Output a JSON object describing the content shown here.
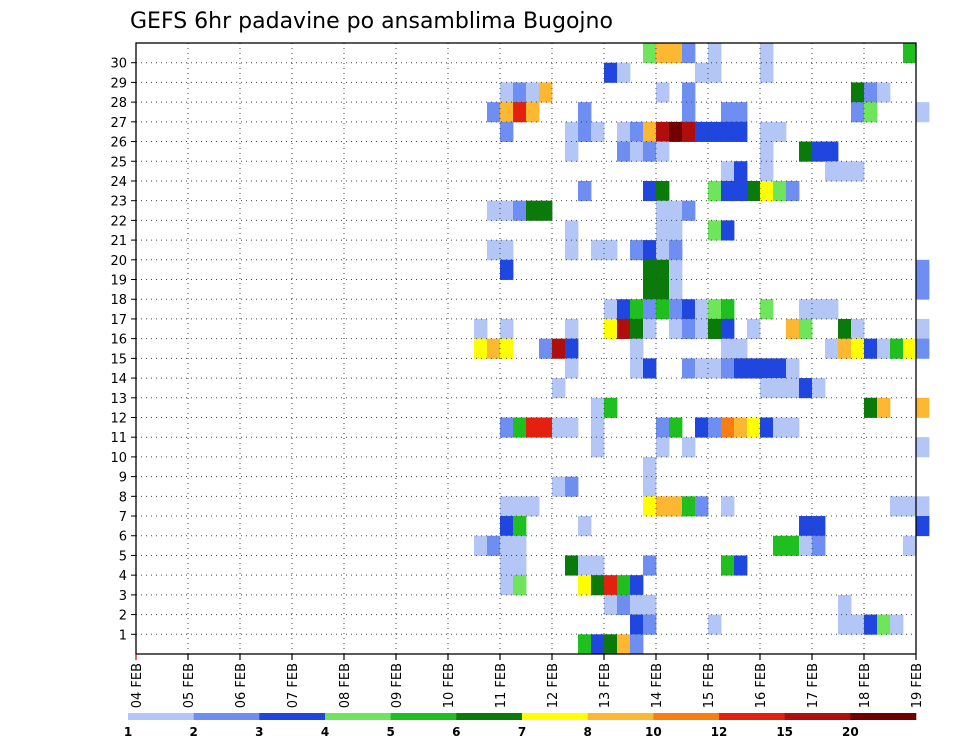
{
  "chart_data": {
    "type": "heatmap",
    "title": "GEFS 6hr padavine po ansamblima Bugojno",
    "xlabel": "",
    "ylabel": "",
    "x_ticks": [
      "04 FEB",
      "05 FEB",
      "06 FEB",
      "07 FEB",
      "08 FEB",
      "09 FEB",
      "10 FEB",
      "11 FEB",
      "12 FEB",
      "13 FEB",
      "14 FEB",
      "15 FEB",
      "16 FEB",
      "17 FEB",
      "18 FEB",
      "19 FEB"
    ],
    "y_ticks": [
      "1",
      "2",
      "3",
      "4",
      "5",
      "6",
      "7",
      "8",
      "9",
      "10",
      "11",
      "12",
      "13",
      "14",
      "15",
      "16",
      "17",
      "18",
      "19",
      "20",
      "21",
      "22",
      "23",
      "24",
      "25",
      "26",
      "27",
      "28",
      "29",
      "30"
    ],
    "x_axis": "6-hourly steps starting 04 FEB 00z (4 steps per day)",
    "y_axis": "ensemble member",
    "grid": true,
    "legend": {
      "placement": "bottom",
      "colors": [
        "#b3c6f5",
        "#6e8ef2",
        "#1f47e0",
        "#6ee55a",
        "#1fbf1f",
        "#0a7a0a",
        "#ffff00",
        "#fdb832",
        "#fb7d0f",
        "#e4200e",
        "#b00d0d",
        "#700000"
      ],
      "labels": [
        "1",
        "2",
        "3",
        "4",
        "5",
        "6",
        "7",
        "8",
        "10",
        "12",
        "15",
        "20"
      ]
    },
    "cells": [
      [
        30,
        39,
        4
      ],
      [
        30,
        40,
        8
      ],
      [
        30,
        41,
        8
      ],
      [
        30,
        42,
        2
      ],
      [
        30,
        44,
        1
      ],
      [
        30,
        48,
        1
      ],
      [
        30,
        59,
        5
      ],
      [
        29,
        36,
        3
      ],
      [
        29,
        37,
        1
      ],
      [
        29,
        43,
        1
      ],
      [
        29,
        44,
        1
      ],
      [
        29,
        48,
        1
      ],
      [
        28,
        28,
        1
      ],
      [
        28,
        29,
        2
      ],
      [
        28,
        30,
        1
      ],
      [
        28,
        31,
        9
      ],
      [
        28,
        40,
        1
      ],
      [
        28,
        42,
        2
      ],
      [
        28,
        55,
        6
      ],
      [
        28,
        56,
        2
      ],
      [
        28,
        57,
        1
      ],
      [
        27,
        27,
        2
      ],
      [
        27,
        28,
        8
      ],
      [
        27,
        29,
        12
      ],
      [
        27,
        30,
        8
      ],
      [
        27,
        34,
        2
      ],
      [
        27,
        42,
        2
      ],
      [
        27,
        45,
        2
      ],
      [
        27,
        46,
        2
      ],
      [
        27,
        55,
        2
      ],
      [
        27,
        56,
        4
      ],
      [
        27,
        60,
        1
      ],
      [
        26,
        28,
        2
      ],
      [
        26,
        33,
        1
      ],
      [
        26,
        34,
        2
      ],
      [
        26,
        35,
        1
      ],
      [
        26,
        37,
        1
      ],
      [
        26,
        38,
        2
      ],
      [
        26,
        39,
        8
      ],
      [
        26,
        40,
        15
      ],
      [
        26,
        41,
        20
      ],
      [
        26,
        42,
        15
      ],
      [
        26,
        43,
        3
      ],
      [
        26,
        44,
        3
      ],
      [
        26,
        45,
        3
      ],
      [
        26,
        46,
        3
      ],
      [
        26,
        48,
        1
      ],
      [
        26,
        49,
        1
      ],
      [
        25,
        33,
        1
      ],
      [
        25,
        37,
        2
      ],
      [
        25,
        38,
        1
      ],
      [
        25,
        39,
        2
      ],
      [
        25,
        40,
        1
      ],
      [
        25,
        48,
        1
      ],
      [
        25,
        51,
        6
      ],
      [
        25,
        52,
        3
      ],
      [
        25,
        53,
        3
      ],
      [
        24,
        45,
        1
      ],
      [
        24,
        46,
        3
      ],
      [
        24,
        48,
        1
      ],
      [
        24,
        53,
        1
      ],
      [
        24,
        54,
        1
      ],
      [
        24,
        55,
        1
      ],
      [
        23,
        34,
        2
      ],
      [
        23,
        39,
        3
      ],
      [
        23,
        40,
        6
      ],
      [
        23,
        44,
        4
      ],
      [
        23,
        45,
        3
      ],
      [
        23,
        46,
        3
      ],
      [
        23,
        47,
        6
      ],
      [
        23,
        48,
        7
      ],
      [
        23,
        49,
        4
      ],
      [
        23,
        50,
        2
      ],
      [
        22,
        27,
        1
      ],
      [
        22,
        28,
        1
      ],
      [
        22,
        29,
        2
      ],
      [
        22,
        30,
        6
      ],
      [
        22,
        31,
        6
      ],
      [
        22,
        40,
        1
      ],
      [
        22,
        41,
        1
      ],
      [
        22,
        42,
        2
      ],
      [
        21,
        33,
        1
      ],
      [
        21,
        40,
        1
      ],
      [
        21,
        41,
        1
      ],
      [
        21,
        44,
        4
      ],
      [
        21,
        45,
        3
      ],
      [
        20,
        27,
        1
      ],
      [
        20,
        28,
        1
      ],
      [
        20,
        33,
        1
      ],
      [
        20,
        35,
        1
      ],
      [
        20,
        36,
        1
      ],
      [
        20,
        38,
        2
      ],
      [
        20,
        39,
        3
      ],
      [
        20,
        40,
        1
      ],
      [
        20,
        41,
        2
      ],
      [
        19,
        28,
        3
      ],
      [
        19,
        39,
        6
      ],
      [
        19,
        40,
        6
      ],
      [
        19,
        41,
        1
      ],
      [
        19,
        60,
        2
      ],
      [
        18,
        39,
        6
      ],
      [
        18,
        40,
        6
      ],
      [
        18,
        41,
        1
      ],
      [
        18,
        60,
        2
      ],
      [
        17,
        36,
        1
      ],
      [
        17,
        37,
        3
      ],
      [
        17,
        38,
        5
      ],
      [
        17,
        39,
        2
      ],
      [
        17,
        40,
        5
      ],
      [
        17,
        41,
        2
      ],
      [
        17,
        42,
        3
      ],
      [
        17,
        43,
        1
      ],
      [
        17,
        44,
        4
      ],
      [
        17,
        45,
        5
      ],
      [
        17,
        48,
        4
      ],
      [
        17,
        51,
        1
      ],
      [
        17,
        52,
        1
      ],
      [
        17,
        53,
        1
      ],
      [
        16,
        26,
        1
      ],
      [
        16,
        28,
        1
      ],
      [
        16,
        33,
        1
      ],
      [
        16,
        36,
        7
      ],
      [
        16,
        37,
        15
      ],
      [
        16,
        38,
        6
      ],
      [
        16,
        39,
        1
      ],
      [
        16,
        41,
        1
      ],
      [
        16,
        42,
        2
      ],
      [
        16,
        43,
        1
      ],
      [
        16,
        44,
        6
      ],
      [
        16,
        45,
        3
      ],
      [
        16,
        47,
        1
      ],
      [
        16,
        50,
        8
      ],
      [
        16,
        51,
        4
      ],
      [
        16,
        54,
        6
      ],
      [
        16,
        55,
        1
      ],
      [
        16,
        60,
        1
      ],
      [
        15,
        26,
        7
      ],
      [
        15,
        27,
        8
      ],
      [
        15,
        28,
        7
      ],
      [
        15,
        31,
        2
      ],
      [
        15,
        32,
        15
      ],
      [
        15,
        33,
        3
      ],
      [
        15,
        38,
        1
      ],
      [
        15,
        45,
        1
      ],
      [
        15,
        46,
        1
      ],
      [
        15,
        53,
        1
      ],
      [
        15,
        54,
        9
      ],
      [
        15,
        55,
        7
      ],
      [
        15,
        56,
        3
      ],
      [
        15,
        57,
        1
      ],
      [
        15,
        58,
        5
      ],
      [
        15,
        59,
        7
      ],
      [
        15,
        60,
        2
      ],
      [
        14,
        33,
        1
      ],
      [
        14,
        38,
        1
      ],
      [
        14,
        39,
        3
      ],
      [
        14,
        42,
        2
      ],
      [
        14,
        43,
        1
      ],
      [
        14,
        44,
        1
      ],
      [
        14,
        45,
        2
      ],
      [
        14,
        46,
        3
      ],
      [
        14,
        47,
        3
      ],
      [
        14,
        48,
        3
      ],
      [
        14,
        49,
        3
      ],
      [
        14,
        50,
        1
      ],
      [
        13,
        32,
        1
      ],
      [
        13,
        48,
        1
      ],
      [
        13,
        49,
        1
      ],
      [
        13,
        50,
        1
      ],
      [
        13,
        51,
        3
      ],
      [
        13,
        52,
        1
      ],
      [
        12,
        35,
        1
      ],
      [
        12,
        36,
        5
      ],
      [
        12,
        56,
        6
      ],
      [
        12,
        57,
        8
      ],
      [
        12,
        60,
        8
      ],
      [
        11,
        28,
        2
      ],
      [
        11,
        29,
        5
      ],
      [
        11,
        30,
        12
      ],
      [
        11,
        31,
        12
      ],
      [
        11,
        32,
        1
      ],
      [
        11,
        33,
        1
      ],
      [
        11,
        35,
        1
      ],
      [
        11,
        40,
        2
      ],
      [
        11,
        41,
        5
      ],
      [
        11,
        43,
        3
      ],
      [
        11,
        44,
        2
      ],
      [
        11,
        45,
        10
      ],
      [
        11,
        46,
        8
      ],
      [
        11,
        47,
        7
      ],
      [
        11,
        48,
        3
      ],
      [
        11,
        49,
        1
      ],
      [
        11,
        50,
        1
      ],
      [
        10,
        35,
        1
      ],
      [
        10,
        40,
        1
      ],
      [
        10,
        42,
        1
      ],
      [
        10,
        60,
        1
      ],
      [
        9,
        39,
        1
      ],
      [
        8,
        32,
        1
      ],
      [
        8,
        33,
        2
      ],
      [
        8,
        39,
        1
      ],
      [
        7,
        28,
        1
      ],
      [
        7,
        29,
        1
      ],
      [
        7,
        30,
        1
      ],
      [
        7,
        39,
        7
      ],
      [
        7,
        40,
        8
      ],
      [
        7,
        41,
        8
      ],
      [
        7,
        42,
        5
      ],
      [
        7,
        43,
        2
      ],
      [
        7,
        45,
        1
      ],
      [
        7,
        58,
        1
      ],
      [
        7,
        59,
        1
      ],
      [
        7,
        60,
        1
      ],
      [
        6,
        28,
        3
      ],
      [
        6,
        29,
        5
      ],
      [
        6,
        34,
        1
      ],
      [
        6,
        51,
        3
      ],
      [
        6,
        52,
        3
      ],
      [
        6,
        60,
        3
      ],
      [
        5,
        26,
        1
      ],
      [
        5,
        27,
        2
      ],
      [
        5,
        28,
        1
      ],
      [
        5,
        29,
        1
      ],
      [
        5,
        49,
        5
      ],
      [
        5,
        50,
        5
      ],
      [
        5,
        51,
        1
      ],
      [
        5,
        52,
        2
      ],
      [
        5,
        59,
        1
      ],
      [
        4,
        28,
        1
      ],
      [
        4,
        29,
        1
      ],
      [
        4,
        33,
        6
      ],
      [
        4,
        34,
        1
      ],
      [
        4,
        35,
        1
      ],
      [
        4,
        39,
        2
      ],
      [
        4,
        45,
        5
      ],
      [
        4,
        46,
        3
      ],
      [
        3,
        28,
        1
      ],
      [
        3,
        29,
        4
      ],
      [
        3,
        34,
        7
      ],
      [
        3,
        35,
        6
      ],
      [
        3,
        36,
        12
      ],
      [
        3,
        37,
        5
      ],
      [
        3,
        38,
        3
      ],
      [
        2,
        36,
        1
      ],
      [
        2,
        37,
        2
      ],
      [
        2,
        38,
        1
      ],
      [
        2,
        39,
        1
      ],
      [
        2,
        54,
        1
      ],
      [
        1,
        38,
        3
      ],
      [
        1,
        39,
        2
      ],
      [
        1,
        44,
        1
      ],
      [
        1,
        54,
        1
      ],
      [
        1,
        55,
        1
      ],
      [
        1,
        56,
        3
      ],
      [
        1,
        57,
        4
      ],
      [
        1,
        58,
        1
      ],
      [
        0,
        34,
        5
      ],
      [
        0,
        35,
        3
      ],
      [
        0,
        36,
        6
      ],
      [
        0,
        37,
        8
      ],
      [
        0,
        38,
        2
      ]
    ]
  }
}
